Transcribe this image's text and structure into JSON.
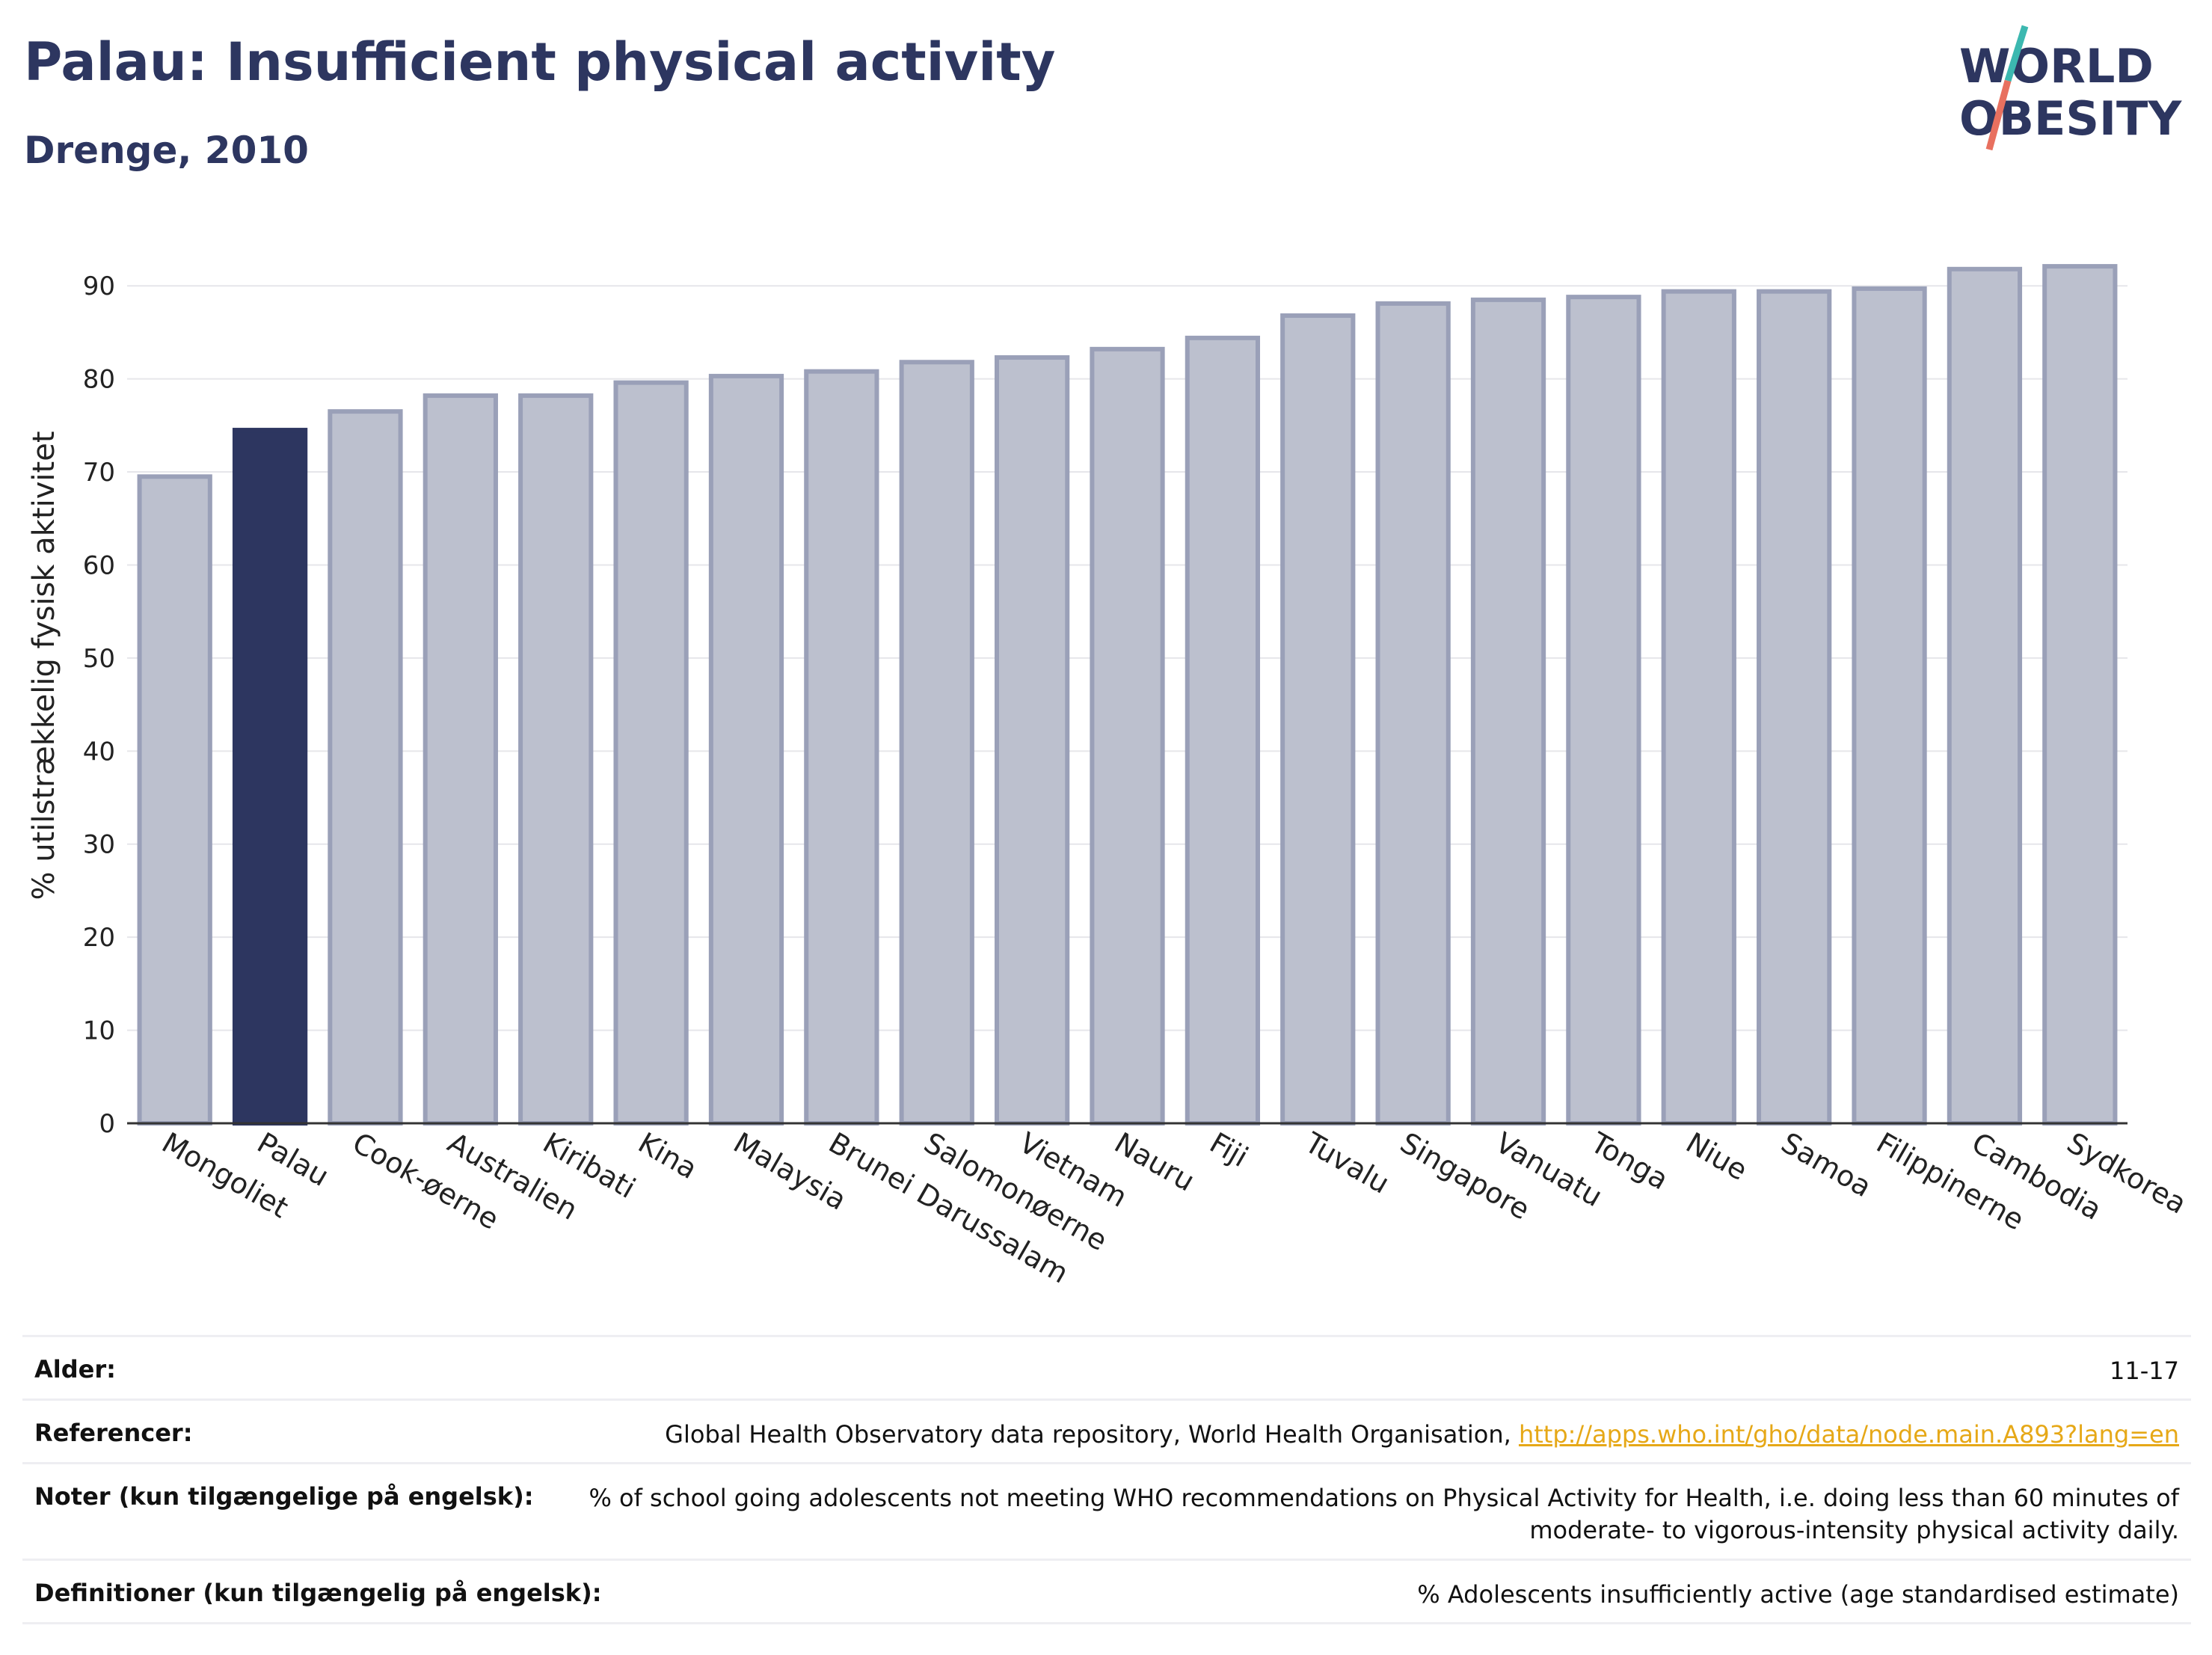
{
  "header": {
    "title": "Palau: Insufficient physical activity",
    "subtitle": "Drenge, 2010"
  },
  "logo": {
    "line1": "WORLD",
    "line2": "OBESITY"
  },
  "chart_data": {
    "type": "bar",
    "ylabel": "% utilstrækkelig fysisk aktivitet",
    "ylim": [
      0,
      95
    ],
    "yticks": [
      0,
      10,
      20,
      30,
      40,
      50,
      60,
      70,
      80,
      90
    ],
    "grid": true,
    "categories": [
      "Mongoliet",
      "Palau",
      "Cook-øerne",
      "Australien",
      "Kiribati",
      "Kina",
      "Malaysia",
      "Brunei Darussalam",
      "Salomonøerne",
      "Vietnam",
      "Nauru",
      "Fiji",
      "Tuvalu",
      "Singapore",
      "Vanuatu",
      "Tonga",
      "Niue",
      "Samoa",
      "Filippinerne",
      "Cambodia",
      "Sydkorea"
    ],
    "values": [
      69.5,
      74.5,
      76.5,
      78.2,
      78.2,
      79.6,
      80.3,
      80.8,
      81.8,
      82.3,
      83.2,
      84.4,
      86.8,
      88.1,
      88.5,
      88.8,
      89.4,
      89.4,
      89.7,
      91.8,
      92.1
    ],
    "highlight": "Palau",
    "colors": {
      "highlight": "#2d3660",
      "bar": "#bcc0ce",
      "bar_edge": "#9aa0b8"
    }
  },
  "footer": {
    "age_label": "Alder:",
    "age_value": "11-17",
    "refs_label": "Referencer:",
    "refs_text": "Global Health Observatory data repository, World Health Organisation, ",
    "refs_link": "http://apps.who.int/gho/data/node.main.A893?lang=en",
    "notes_label": "Noter (kun tilgængelige på engelsk):",
    "notes_text": "% of school going adolescents not meeting WHO recommendations on Physical Activity for Health, i.e. doing less than 60 minutes of moderate- to vigorous-intensity physical activity daily.",
    "defs_label": "Definitioner (kun tilgængelig på engelsk):",
    "defs_text": "% Adolescents insufficiently active (age standardised estimate)"
  }
}
